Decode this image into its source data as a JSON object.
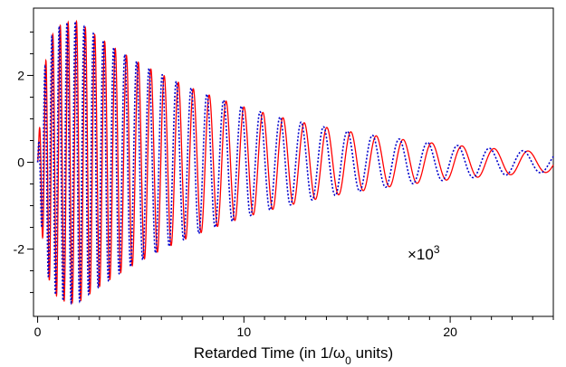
{
  "chart_data": {
    "type": "line",
    "title": "",
    "xlabel": "Retarded Time (in 1/ω",
    "xlabel_sub": "0",
    "xlabel_suffix": " units)",
    "ylabel": "",
    "xlim": [
      -0.2,
      25
    ],
    "ylim": [
      -3.55,
      3.55
    ],
    "xticks": [
      0,
      10,
      20
    ],
    "yticks": [
      -2,
      0,
      2
    ],
    "grid": false,
    "legend": "none",
    "annotation": {
      "text": "×10",
      "sup": "3"
    },
    "description_model": {
      "envelope_peak_x": 1.9,
      "envelope_peak_y": 3.25,
      "rise_time_constant": 0.5,
      "decay_rate": 0.1155,
      "end_amplitude": 0.25,
      "start_frequency": 20.5,
      "end_frequency": 3.55
    },
    "series": [
      {
        "name": "",
        "color": "#ff0000",
        "style": "solid",
        "phase": 0,
        "x_sample": [
          0,
          1,
          2,
          3,
          5,
          8,
          10,
          12,
          15,
          18,
          20,
          22,
          24,
          25
        ],
        "amplitude_envelope": [
          0,
          2.8,
          3.25,
          3.05,
          2.6,
          1.85,
          1.5,
          1.2,
          0.85,
          0.6,
          0.47,
          0.37,
          0.29,
          0.25
        ]
      },
      {
        "name": "",
        "color": "#0000cc",
        "style": "dotted",
        "phase": 0.9,
        "x_sample": [
          0,
          1,
          2,
          3,
          5,
          8,
          10,
          12,
          15,
          18,
          20,
          22,
          24,
          25
        ],
        "amplitude_envelope": [
          0,
          2.8,
          3.25,
          3.05,
          2.6,
          1.85,
          1.5,
          1.2,
          0.85,
          0.6,
          0.47,
          0.37,
          0.29,
          0.25
        ]
      }
    ]
  }
}
